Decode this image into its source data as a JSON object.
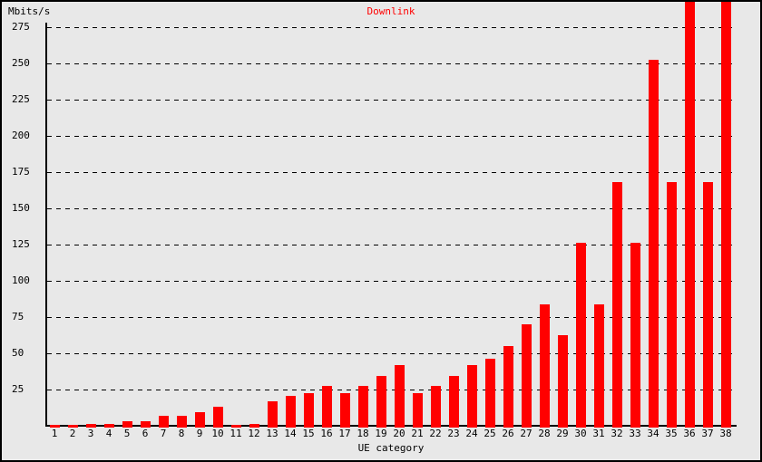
{
  "chart": {
    "title": "Downlink",
    "y_axis_unit_label": "Mbits/s",
    "x_axis_label": "UE category",
    "colors": {
      "bar": "#ff0000",
      "title_text": "#ff0000",
      "background": "#e8e8e8",
      "axis": "#000000",
      "text": "#000000"
    }
  },
  "chart_data": {
    "type": "bar",
    "title": "Downlink",
    "xlabel": "UE category",
    "ylabel": "Mbits/s",
    "categories": [
      "1",
      "2",
      "3",
      "4",
      "5",
      "6",
      "7",
      "8",
      "9",
      "10",
      "11",
      "12",
      "13",
      "14",
      "15",
      "16",
      "17",
      "18",
      "19",
      "20",
      "21",
      "22",
      "23",
      "24",
      "25",
      "26",
      "27",
      "28",
      "29",
      "30",
      "31",
      "32",
      "33",
      "34",
      "35",
      "36",
      "37",
      "38"
    ],
    "values": [
      1.2,
      1.2,
      1.8,
      1.8,
      3.6,
      3.6,
      7.2,
      7.2,
      10.1,
      14.0,
      0.9,
      1.8,
      17.6,
      21.1,
      23.4,
      28.0,
      23.4,
      28.0,
      35.3,
      42.2,
      23.4,
      28.0,
      35.3,
      42.2,
      46.7,
      55.9,
      70.6,
      84.4,
      63.0,
      126.6,
      84.4,
      168.8,
      126.6,
      253.1,
      168.8,
      337.5,
      168.8,
      337.5
    ],
    "ytick_values": [
      25,
      50,
      75,
      100,
      125,
      150,
      175,
      200,
      225,
      250,
      275
    ],
    "ylim": [
      0,
      292
    ],
    "bars_clipped_at_top": [
      "36",
      "38"
    ],
    "grid": "horizontal dashed lines every 25, grid on",
    "legend_position": "none",
    "bar_color": "#ff0000"
  }
}
